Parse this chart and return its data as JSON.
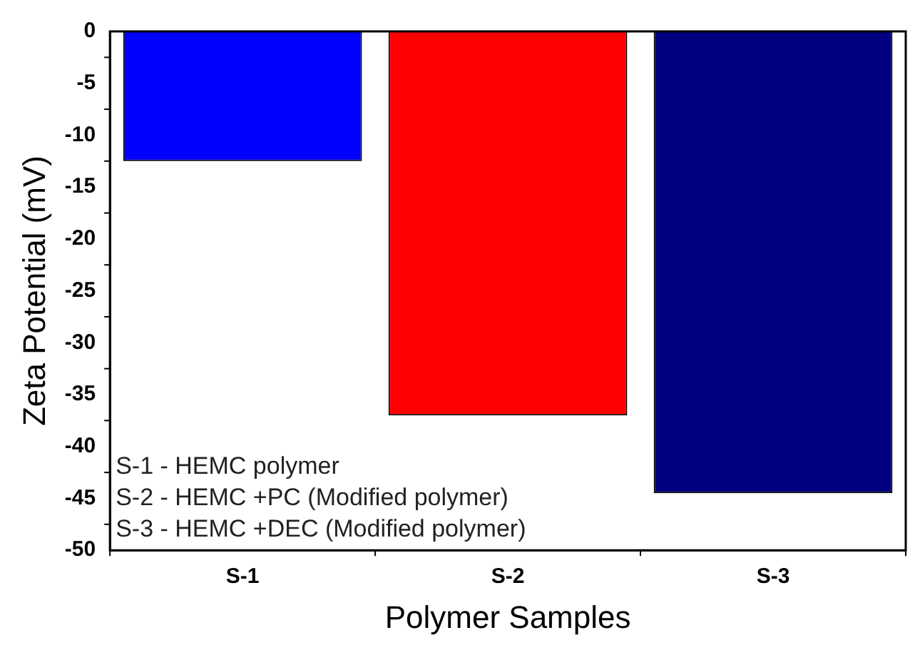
{
  "chart_data": {
    "type": "bar",
    "xlabel": "Polymer Samples",
    "ylabel": "Zeta Potential (mV)",
    "categories": [
      "S-1",
      "S-2",
      "S-3"
    ],
    "values": [
      -12.5,
      -37,
      -44.5
    ],
    "colors": [
      "#0000ff",
      "#ff0000",
      "#000080"
    ],
    "ylim": [
      -50,
      0
    ],
    "yticks": [
      -50,
      -45,
      -40,
      -35,
      -30,
      -25,
      -20,
      -15,
      -10,
      -5,
      0
    ],
    "grid": false,
    "legend": false,
    "annotations": [
      "S-1 - HEMC polymer",
      "S-2 - HEMC +PC (Modified polymer)",
      "S-3 - HEMC +DEC (Modified polymer)"
    ]
  }
}
